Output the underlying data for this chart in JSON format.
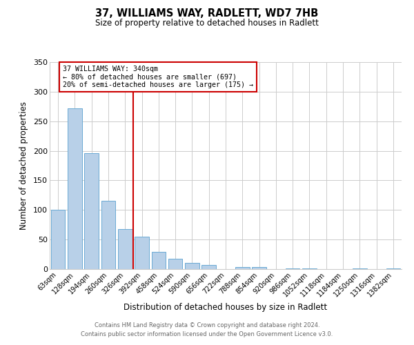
{
  "title": "37, WILLIAMS WAY, RADLETT, WD7 7HB",
  "subtitle": "Size of property relative to detached houses in Radlett",
  "xlabel": "Distribution of detached houses by size in Radlett",
  "ylabel": "Number of detached properties",
  "bar_labels": [
    "63sqm",
    "128sqm",
    "194sqm",
    "260sqm",
    "326sqm",
    "392sqm",
    "458sqm",
    "524sqm",
    "590sqm",
    "656sqm",
    "722sqm",
    "788sqm",
    "854sqm",
    "920sqm",
    "986sqm",
    "1052sqm",
    "1118sqm",
    "1184sqm",
    "1250sqm",
    "1316sqm",
    "1382sqm"
  ],
  "bar_values": [
    100,
    272,
    196,
    116,
    68,
    55,
    29,
    17,
    10,
    7,
    0,
    4,
    4,
    0,
    1,
    1,
    0,
    0,
    1,
    0,
    1
  ],
  "bar_color": "#b8d0e8",
  "bar_edge_color": "#6aaad4",
  "vline_x": 4.5,
  "vline_color": "#cc0000",
  "annotation_title": "37 WILLIAMS WAY: 340sqm",
  "annotation_line1": "← 80% of detached houses are smaller (697)",
  "annotation_line2": "20% of semi-detached houses are larger (175) →",
  "annotation_box_color": "#cc0000",
  "annotation_text_color": "#000000",
  "footer1": "Contains HM Land Registry data © Crown copyright and database right 2024.",
  "footer2": "Contains public sector information licensed under the Open Government Licence v3.0.",
  "ylim": [
    0,
    350
  ],
  "background_color": "#ffffff",
  "grid_color": "#cccccc"
}
